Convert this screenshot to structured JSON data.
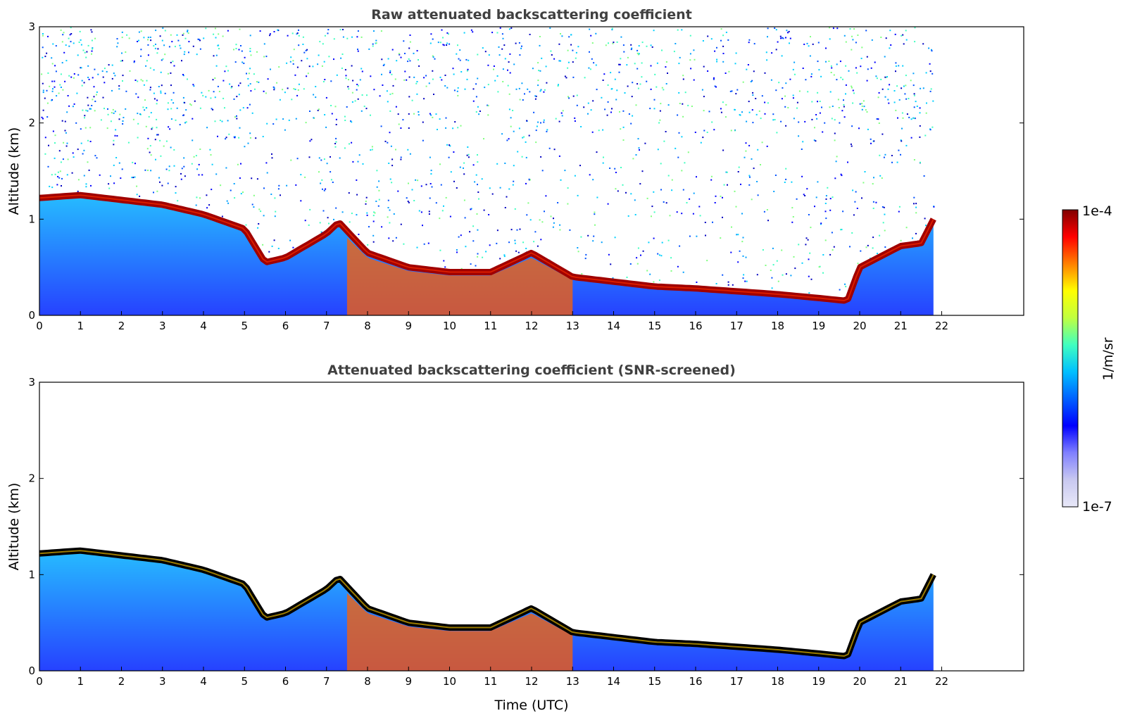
{
  "chart_data": [
    {
      "type": "heatmap",
      "title": "Raw attenuated backscattering coefficient",
      "xlabel": "",
      "ylabel": "Altitude (km)",
      "xlim": [
        0,
        24
      ],
      "ylim": [
        0,
        3
      ],
      "x_ticks": [
        "0",
        "1",
        "2",
        "3",
        "4",
        "5",
        "6",
        "7",
        "8",
        "9",
        "10",
        "11",
        "12",
        "13",
        "14",
        "15",
        "16",
        "17",
        "18",
        "19",
        "20",
        "21",
        "22"
      ],
      "y_ticks": [
        "0",
        "1",
        "2",
        "3"
      ],
      "data_end_hour": 21.8,
      "layer_top_km": {
        "hours": [
          0,
          1,
          2,
          3,
          4,
          5,
          5.5,
          6,
          7,
          7.3,
          8,
          9,
          10,
          11,
          12,
          13,
          14,
          15,
          16,
          17,
          18,
          19,
          19.7,
          20,
          21,
          21.5,
          21.8
        ],
        "values": [
          1.22,
          1.25,
          1.2,
          1.15,
          1.05,
          0.9,
          0.55,
          0.6,
          0.85,
          0.97,
          0.65,
          0.5,
          0.45,
          0.45,
          0.65,
          0.4,
          0.35,
          0.3,
          0.28,
          0.25,
          0.22,
          0.18,
          0.15,
          0.5,
          0.72,
          0.75,
          1.0
        ]
      }
    },
    {
      "type": "heatmap",
      "title": "Attenuated backscattering coefficient (SNR-screened)",
      "xlabel": "Time (UTC)",
      "ylabel": "Altitude (km)",
      "xlim": [
        0,
        24
      ],
      "ylim": [
        0,
        3
      ],
      "x_ticks": [
        "0",
        "1",
        "2",
        "3",
        "4",
        "5",
        "6",
        "7",
        "8",
        "9",
        "10",
        "11",
        "12",
        "13",
        "14",
        "15",
        "16",
        "17",
        "18",
        "19",
        "20",
        "21",
        "22"
      ],
      "y_ticks": [
        "0",
        "1",
        "2",
        "3"
      ],
      "data_end_hour": 21.8,
      "layer_top_km": {
        "hours": [
          0,
          1,
          2,
          3,
          4,
          5,
          5.5,
          6,
          7,
          7.3,
          8,
          9,
          10,
          11,
          12,
          13,
          14,
          15,
          16,
          17,
          18,
          19,
          19.7,
          20,
          21,
          21.5,
          21.8
        ],
        "values": [
          1.22,
          1.25,
          1.2,
          1.15,
          1.05,
          0.9,
          0.55,
          0.6,
          0.85,
          0.97,
          0.65,
          0.5,
          0.45,
          0.45,
          0.65,
          0.4,
          0.35,
          0.3,
          0.28,
          0.25,
          0.22,
          0.18,
          0.15,
          0.5,
          0.72,
          0.75,
          1.0
        ]
      }
    }
  ],
  "colorbar": {
    "label": "1/m/sr",
    "min_label": "1e-7",
    "max_label": "1e-4",
    "colors": [
      "#e8e8f8",
      "#c8c8f0",
      "#8080ff",
      "#0000ff",
      "#0060ff",
      "#00c0ff",
      "#40ffc0",
      "#c0ff40",
      "#ffff00",
      "#ff8000",
      "#ff0000",
      "#800000"
    ]
  }
}
